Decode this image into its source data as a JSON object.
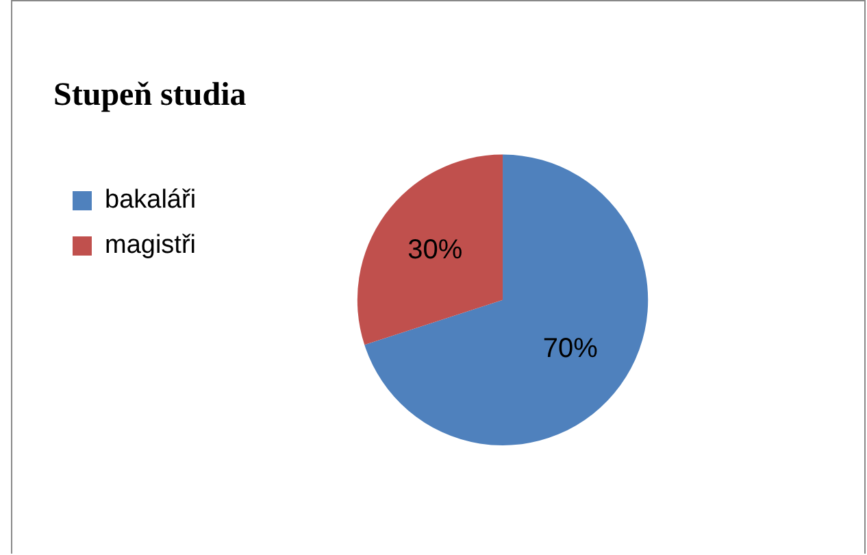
{
  "chart_data": {
    "type": "pie",
    "title": "Stupeň studia",
    "categories": [
      "bakaláři",
      "magistři"
    ],
    "values": [
      70,
      30
    ],
    "colors": [
      "#4f81bd",
      "#c0504d"
    ],
    "value_labels": [
      "70%",
      "30%"
    ],
    "legend": "left"
  }
}
